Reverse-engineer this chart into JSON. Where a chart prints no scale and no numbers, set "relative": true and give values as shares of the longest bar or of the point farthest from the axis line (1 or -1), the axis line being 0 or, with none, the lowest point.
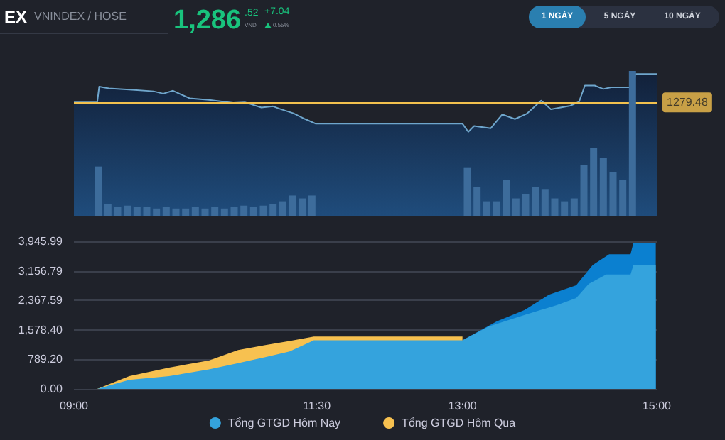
{
  "chart_data": [
    {
      "type": "other",
      "title": "EX",
      "subtitle": "VNINDEX / HOSE",
      "annotations": [
        "1,286",
        ".52",
        "VND",
        "+7.04",
        "0.55%",
        "1 NGÀY",
        "5 NGÀY",
        "10 NGÀY"
      ]
    },
    {
      "type": "area",
      "relative": true,
      "xlim": [
        9,
        15
      ],
      "tick_labels": false,
      "grid": false,
      "marker": "none",
      "series": [
        {
          "color": "#6fa6cc",
          "x": [
            9,
            9.24,
            9.26,
            9.36,
            9.57,
            9.82,
            9.92,
            10.02,
            10.19,
            10.39,
            10.64,
            10.76,
            10.93,
            11.05,
            11.13,
            11.26,
            11.38,
            11.49,
            13.0,
            13.06,
            13.12,
            13.29,
            13.41,
            13.54,
            13.66,
            13.81,
            13.91,
            14.11,
            14.2,
            14.26,
            14.36,
            14.45,
            14.53,
            14.76,
            14.78,
            15.0
          ],
          "values": [
            0.51,
            0.51,
            0.78,
            0.75,
            0.73,
            0.7,
            0.66,
            0.71,
            0.58,
            0.55,
            0.5,
            0.51,
            0.42,
            0.44,
            0.39,
            0.32,
            0.22,
            0.14,
            0.14,
            0,
            0.1,
            0.06,
            0.3,
            0.22,
            0.31,
            0.54,
            0.39,
            0.45,
            0.52,
            0.8,
            0.8,
            0.74,
            0.77,
            0.77,
            1,
            1
          ]
        }
      ],
      "ref_lines": [
        {
          "axis": "y",
          "value": 0.51,
          "color": "#f2c14e"
        }
      ],
      "annotations": [
        "1279.48"
      ]
    },
    {
      "type": "bar",
      "relative": true,
      "tick_labels": false,
      "grid": false,
      "xlim": [
        9,
        15
      ],
      "series": [
        {
          "color": "#3d6c9b",
          "x": [
            9.25,
            9.35,
            9.45,
            9.55,
            9.65,
            9.75,
            9.85,
            9.95,
            10.05,
            10.15,
            10.25,
            10.35,
            10.45,
            10.55,
            10.65,
            10.75,
            10.85,
            10.95,
            11.05,
            11.15,
            11.25,
            11.35,
            11.45,
            13.05,
            13.15,
            13.25,
            13.35,
            13.45,
            13.55,
            13.65,
            13.75,
            13.85,
            13.95,
            14.05,
            14.15,
            14.25,
            14.35,
            14.45,
            14.55,
            14.65,
            14.75
          ],
          "values": [
            0.34,
            0.08,
            0.06,
            0.07,
            0.06,
            0.06,
            0.05,
            0.06,
            0.05,
            0.05,
            0.06,
            0.05,
            0.06,
            0.05,
            0.06,
            0.07,
            0.06,
            0.07,
            0.08,
            0.1,
            0.14,
            0.12,
            0.14,
            0.33,
            0.2,
            0.1,
            0.1,
            0.25,
            0.12,
            0.15,
            0.2,
            0.18,
            0.12,
            0.1,
            0.12,
            0.35,
            0.47,
            0.4,
            0.3,
            0.25,
            1
          ]
        }
      ]
    },
    {
      "type": "area",
      "xlim": [
        9,
        15
      ],
      "ylim": [
        0,
        3945.99
      ],
      "grid": "y",
      "legend": "bottom",
      "marker": "none",
      "xticks": [
        {
          "value": 9,
          "label": "09:00"
        },
        {
          "value": 11.5,
          "label": "11:30"
        },
        {
          "value": 13,
          "label": "13:00"
        },
        {
          "value": 15,
          "label": "15:00"
        }
      ],
      "yticks": [
        {
          "value": 0,
          "label": "0.00"
        },
        {
          "value": 789.2,
          "label": "789.20"
        },
        {
          "value": 1578.4,
          "label": "1,578.40"
        },
        {
          "value": 2367.59,
          "label": "2,367.59"
        },
        {
          "value": 3156.79,
          "label": "3,156.79"
        },
        {
          "value": 3945.99,
          "label": "3,945.99"
        }
      ],
      "series": [
        {
          "name": "Tổng GTGD Hôm Nay",
          "color": "#34a3dd",
          "x": [
            9,
            9.24,
            9.57,
            9.98,
            10.39,
            10.69,
            10.97,
            11.22,
            11.47,
            13.0,
            13.27,
            13.64,
            13.97,
            14.17,
            14.3,
            14.48,
            14.73,
            14.76,
            14.99
          ],
          "values": [
            0,
            0,
            240,
            340,
            520,
            690,
            850,
            1000,
            1300,
            1300,
            1670,
            1980,
            2240,
            2430,
            2810,
            3060,
            3060,
            3310,
            3310
          ]
        },
        {
          "name": "Tổng GTGD Hôm Qua",
          "color": "#f7c150",
          "x": [
            9,
            9.24,
            9.57,
            9.98,
            10.39,
            10.69,
            10.97,
            11.22,
            11.47,
            13.0
          ],
          "values": [
            0,
            0,
            340,
            570,
            760,
            1040,
            1170,
            1280,
            1400,
            1400
          ]
        },
        {
          "color": "#0b80d0",
          "x": [
            13.0,
            13.35,
            13.64,
            13.89,
            14.17,
            14.34,
            14.51,
            14.73,
            14.76,
            14.99
          ],
          "values": [
            1300,
            1800,
            2110,
            2520,
            2770,
            3310,
            3600,
            3600,
            3910,
            3910
          ]
        }
      ]
    }
  ]
}
